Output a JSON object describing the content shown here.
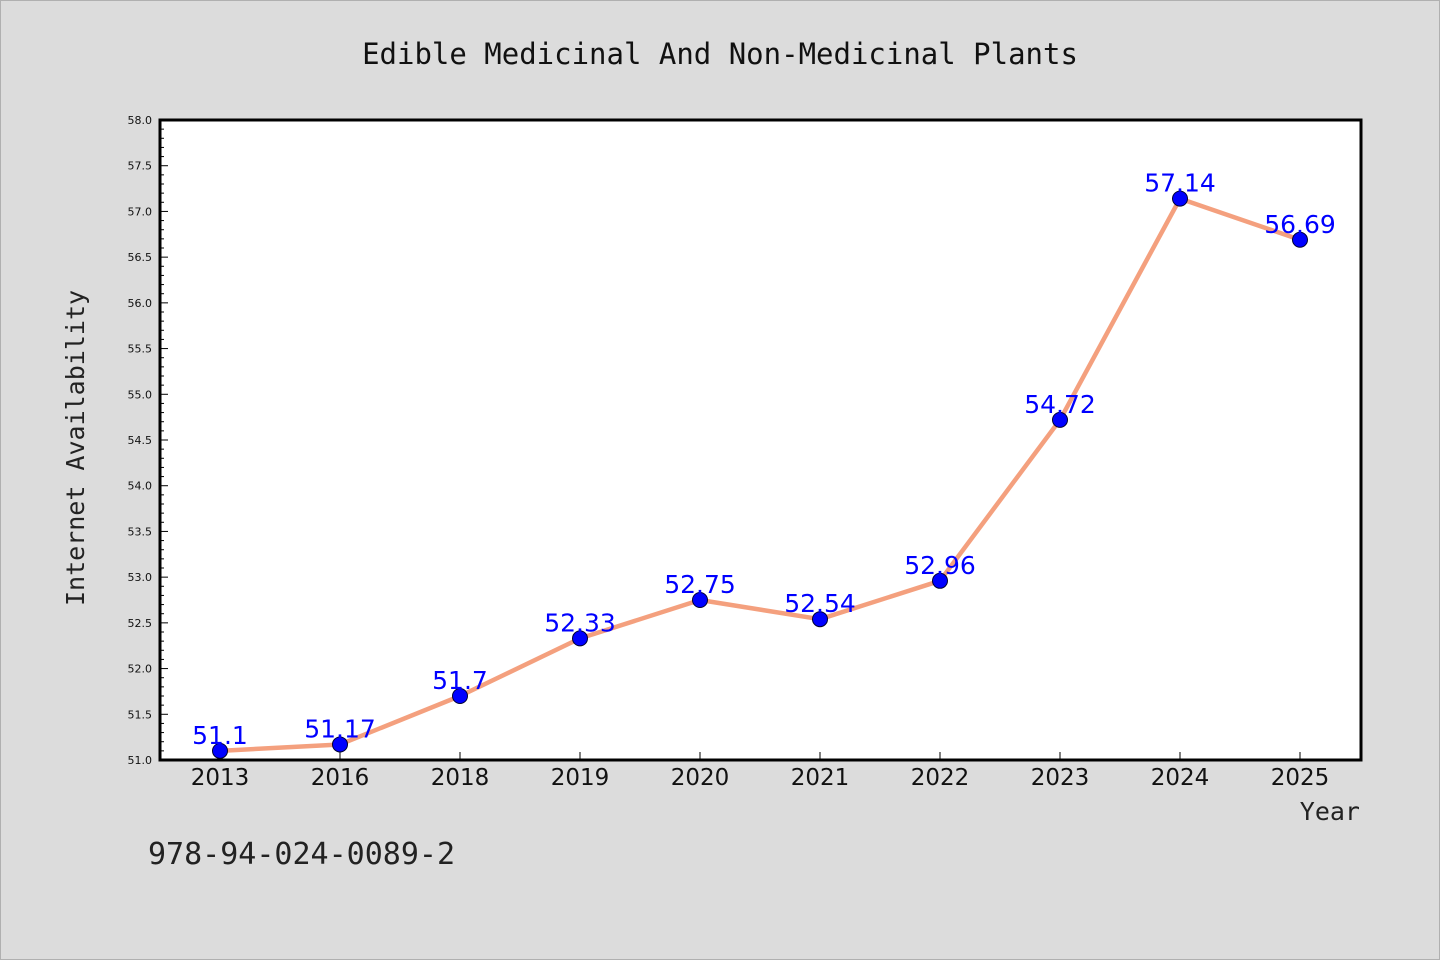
{
  "chart_data": {
    "type": "line",
    "title": "Edible Medicinal And Non-Medicinal Plants",
    "xlabel": "Year",
    "ylabel": "Internet Availability",
    "categories": [
      "2013",
      "2016",
      "2018",
      "2019",
      "2020",
      "2021",
      "2022",
      "2023",
      "2024",
      "2025"
    ],
    "values": [
      51.1,
      51.17,
      51.7,
      52.33,
      52.75,
      52.54,
      52.96,
      54.72,
      57.14,
      56.69
    ],
    "data_labels": [
      "51.1",
      "51.17",
      "51.7",
      "52.33",
      "52.75",
      "52.54",
      "52.96",
      "54.72",
      "57.14",
      "56.69"
    ],
    "ylim": [
      51.0,
      58.0
    ],
    "yticks": [
      "51.0",
      "51.5",
      "52.0",
      "52.5",
      "53.0",
      "53.5",
      "54.0",
      "54.5",
      "55.0",
      "55.5",
      "56.0",
      "56.5",
      "57.0",
      "57.5",
      "58.0"
    ],
    "grid": false,
    "legend": "none",
    "line_color": "#f4a07e",
    "marker_color": "#0000ff",
    "label_color": "#0000ff",
    "plot_background": "#ffffff",
    "figure_background": "#dcdcdc"
  },
  "footer": {
    "isbn": "978-94-024-0089-2"
  }
}
